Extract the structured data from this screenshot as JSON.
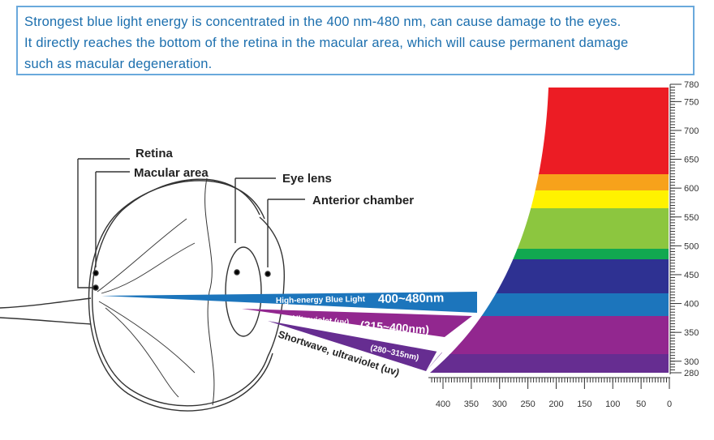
{
  "caption": {
    "lines": [
      "Strongest blue light energy is concentrated in the 400 nm-480 nm, can cause damage to the eyes.",
      "It directly reaches the bottom of the retina in the macular area, which will cause permanent damage",
      "such as macular degeneration."
    ]
  },
  "eye_labels": {
    "retina": "Retina",
    "macular_area": "Macular area",
    "eye_lens": "Eye lens",
    "anterior_chamber": "Anterior chamber"
  },
  "rays": {
    "blue_name": "High-energy Blue Light",
    "blue_range": "400~480nm",
    "uva_name": "Ultraviolet (uv)",
    "uva_range": "(315~400nm)",
    "uvb_range": "(280~315nm)",
    "uvb_name": "Shortwave, ultraviolet (uv)"
  },
  "wavelength_scale": [
    780,
    750,
    700,
    650,
    600,
    550,
    500,
    450,
    400,
    350,
    300,
    280
  ],
  "bottom_scale": [
    400,
    350,
    300,
    250,
    200,
    150,
    100,
    50,
    0
  ]
}
